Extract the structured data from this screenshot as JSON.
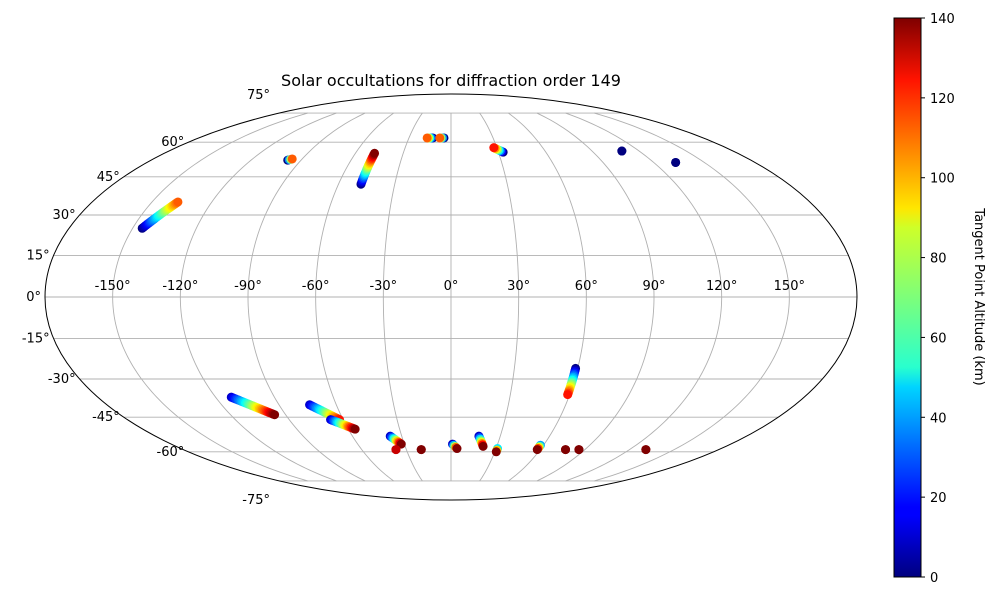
{
  "chart_data": {
    "type": "scatter",
    "projection": "mollweide",
    "title": "Solar occultations for diffraction order 149",
    "x_ticks": [
      "-150°",
      "-120°",
      "-90°",
      "-60°",
      "-30°",
      "0°",
      "30°",
      "60°",
      "90°",
      "120°",
      "150°"
    ],
    "y_ticks": [
      "-75°",
      "-60°",
      "-45°",
      "-30°",
      "-15°",
      "0°",
      "15°",
      "30°",
      "45°",
      "60°",
      "75°"
    ],
    "grid": true,
    "xlim": [
      -180,
      180
    ],
    "ylim": [
      -90,
      90
    ],
    "colorbar": {
      "label": "Tangent Point Altitude (km)",
      "colormap": "jet",
      "range": [
        0,
        140
      ],
      "ticks": [
        "0",
        "20",
        "40",
        "60",
        "80",
        "100",
        "120",
        "140"
      ]
    },
    "tracks": [
      {
        "lon_start": -145.5,
        "lat_start": 25,
        "lon_end": -137,
        "lat_end": 35,
        "alt_start": 0,
        "alt_end": 110
      },
      {
        "lon_start": -98,
        "lat_start": 52,
        "lon_end": -96,
        "lat_end": 52.5,
        "alt_start": 0,
        "alt_end": 110
      },
      {
        "lon_start": -48,
        "lat_start": 42,
        "lon_end": -48,
        "lat_end": 55,
        "alt_start": 0,
        "alt_end": 140
      },
      {
        "lon_start": -13,
        "lat_start": 62,
        "lon_end": -17,
        "lat_end": 62,
        "alt_start": 0,
        "alt_end": 110
      },
      {
        "lon_start": -5,
        "lat_start": 62,
        "lon_end": -8,
        "lat_end": 62,
        "alt_start": 0,
        "alt_end": 110
      },
      {
        "lon_start": 33,
        "lat_start": 55.5,
        "lon_end": 28,
        "lat_end": 57.5,
        "alt_start": 0,
        "alt_end": 120
      },
      {
        "lon_start": 109,
        "lat_start": 56,
        "lon_end": 109,
        "lat_end": 56,
        "alt_start": 0,
        "alt_end": 0
      },
      {
        "lon_start": 133,
        "lat_start": 51,
        "lon_end": 133,
        "lat_end": 51,
        "alt_start": 0,
        "alt_end": 0
      },
      {
        "lon_start": -112,
        "lat_start": -37,
        "lon_end": -96,
        "lat_end": -44,
        "alt_start": 10,
        "alt_end": 140
      },
      {
        "lon_start": -74,
        "lat_start": -40,
        "lon_end": -62,
        "lat_end": -46,
        "alt_start": 10,
        "alt_end": 120
      },
      {
        "lon_start": -67,
        "lat_start": -46,
        "lon_end": -56,
        "lat_end": -50,
        "alt_start": 10,
        "alt_end": 140
      },
      {
        "lon_start": -37,
        "lat_start": -53,
        "lon_end": -32,
        "lat_end": -56.5,
        "alt_start": 10,
        "alt_end": 140
      },
      {
        "lon_start": -37,
        "lat_start": -59,
        "lon_end": -37,
        "lat_end": -59,
        "alt_start": 130,
        "alt_end": 130
      },
      {
        "lon_start": -20,
        "lat_start": -59,
        "lon_end": -20,
        "lat_end": -59,
        "alt_start": 140,
        "alt_end": 140
      },
      {
        "lon_start": 1,
        "lat_start": -56.5,
        "lon_end": 4,
        "lat_end": -58.5,
        "alt_start": 10,
        "alt_end": 140
      },
      {
        "lon_start": 17,
        "lat_start": -53,
        "lon_end": 21,
        "lat_end": -57.5,
        "alt_start": 10,
        "alt_end": 140
      },
      {
        "lon_start": 31,
        "lat_start": -58.5,
        "lon_end": 31,
        "lat_end": -60,
        "alt_start": 50,
        "alt_end": 140
      },
      {
        "lon_start": 58,
        "lat_start": -57,
        "lon_end": 58,
        "lat_end": -59,
        "alt_start": 40,
        "alt_end": 140
      },
      {
        "lon_start": 59,
        "lat_start": -26,
        "lon_end": 59,
        "lat_end": -36,
        "alt_start": 0,
        "alt_end": 120
      },
      {
        "lon_start": 77,
        "lat_start": -59,
        "lon_end": 77,
        "lat_end": -59,
        "alt_start": 140,
        "alt_end": 140
      },
      {
        "lon_start": 86,
        "lat_start": -59,
        "lon_end": 86,
        "lat_end": -59,
        "alt_start": 140,
        "alt_end": 140
      },
      {
        "lon_start": 131,
        "lat_start": -59,
        "lon_end": 131,
        "lat_end": -59,
        "alt_start": 140,
        "alt_end": 140
      }
    ]
  }
}
